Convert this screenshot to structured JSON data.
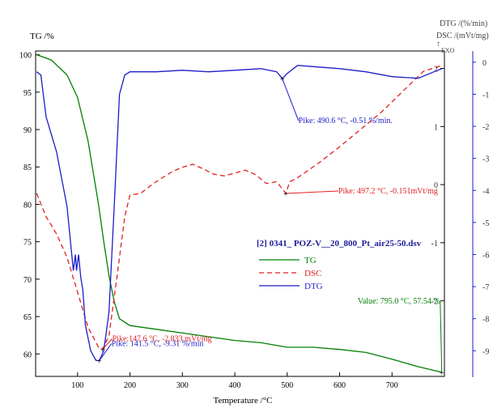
{
  "chart_data": {
    "type": "line",
    "file_title": "[2] 0341_ POZ-V__20_800_Pt_air25-50.dsv",
    "xlabel": "Temperature /°C",
    "x_ticks": [
      "100",
      "200",
      "300",
      "400",
      "500",
      "600",
      "700"
    ],
    "xlim": [
      20,
      800
    ],
    "axes": {
      "tg": {
        "label": "TG /%",
        "ylim": [
          57,
          100.5
        ],
        "ticks": [
          "100",
          "95",
          "90",
          "85",
          "80",
          "75",
          "70",
          "65",
          "60"
        ]
      },
      "dsc": {
        "label": "DSC /(mVt/mg)",
        "exo_label": "EXO",
        "exo_arrow": "↑",
        "ylim": [
          -3.3,
          2.3
        ],
        "ticks": [
          "2",
          "1",
          "0",
          "-1",
          "-2"
        ]
      },
      "dtg": {
        "label": "DTG /(%/min)",
        "ylim": [
          -9.8,
          0.35
        ],
        "ticks": [
          "0",
          "-1",
          "-2",
          "-3",
          "-4",
          "-5",
          "-6",
          "-7",
          "-8",
          "-9"
        ]
      }
    },
    "series": [
      {
        "name": "TG",
        "axis": "tg",
        "color": "#008000",
        "dash": "solid",
        "x": [
          22,
          50,
          80,
          100,
          120,
          140,
          150,
          160,
          170,
          180,
          200,
          250,
          300,
          350,
          400,
          450,
          500,
          550,
          600,
          650,
          700,
          750,
          795
        ],
        "y": [
          100,
          99.3,
          97.3,
          94.3,
          88.5,
          80,
          75,
          70.5,
          67,
          64.7,
          63.8,
          63.3,
          62.8,
          62.3,
          61.8,
          61.5,
          60.9,
          60.9,
          60.6,
          60.2,
          59.3,
          58.3,
          57.54
        ]
      },
      {
        "name": "DSC",
        "axis": "dsc",
        "color": "#e02020",
        "dash": "dashed",
        "x": [
          22,
          40,
          60,
          80,
          100,
          120,
          140,
          147.6,
          160,
          175,
          190,
          200,
          220,
          250,
          280,
          300,
          320,
          340,
          360,
          380,
          400,
          420,
          440,
          460,
          480,
          497.2,
          505,
          520,
          560,
          600,
          640,
          680,
          720,
          760,
          795
        ],
        "y": [
          -0.15,
          -0.55,
          -0.85,
          -1.25,
          -1.85,
          -2.45,
          -2.8,
          -2.833,
          -2.6,
          -1.6,
          -0.55,
          -0.18,
          -0.15,
          0.05,
          0.22,
          0.3,
          0.35,
          0.27,
          0.18,
          0.15,
          0.2,
          0.25,
          0.17,
          0.02,
          0.05,
          -0.151,
          0.05,
          0.12,
          0.37,
          0.65,
          0.95,
          1.25,
          1.6,
          1.95,
          2.05
        ]
      },
      {
        "name": "DTG",
        "axis": "dtg",
        "color": "#1c1cc8",
        "dash": "solid",
        "x": [
          22,
          30,
          40,
          60,
          80,
          92,
          96,
          98,
          102,
          106,
          110,
          115,
          125,
          135,
          141.5,
          150,
          160,
          170,
          180,
          190,
          200,
          250,
          300,
          350,
          400,
          450,
          480,
          490.6,
          500,
          520,
          560,
          600,
          650,
          700,
          750,
          780,
          795
        ],
        "y": [
          -0.3,
          -0.4,
          -1.7,
          -2.8,
          -4.5,
          -6.5,
          -6.0,
          -6.5,
          -6.0,
          -6.7,
          -7.1,
          -8.2,
          -9.0,
          -9.3,
          -9.31,
          -9.0,
          -7.8,
          -4.5,
          -1.0,
          -0.4,
          -0.3,
          -0.3,
          -0.25,
          -0.3,
          -0.25,
          -0.2,
          -0.3,
          -0.51,
          -0.35,
          -0.1,
          -0.15,
          -0.2,
          -0.3,
          -0.45,
          -0.5,
          -0.3,
          -0.2
        ]
      }
    ],
    "annotations": [
      {
        "text": "Pike: 490.6 °C, -0.51 %/min.",
        "series": "DTG",
        "x": 490.6,
        "y": -0.51
      },
      {
        "text": "Pike: 497.2 °C, -0.151mVt/mg",
        "series": "DSC",
        "x": 497.2,
        "y": -0.151
      },
      {
        "text": "Pike: 141.5 °C, -9.31 %/min",
        "series": "DTG",
        "x": 141.5,
        "y": -9.31
      },
      {
        "text": "Pike:147.6 °C, -2.833 mVt/mg",
        "series": "DSC",
        "x": 147.6,
        "y": -2.833
      },
      {
        "text": "Value: 795.0 °C, 57.54 %",
        "series": "TG",
        "x": 795,
        "y": 57.54
      }
    ],
    "legend": {
      "placement": "center-right",
      "entries": [
        "TG",
        "DSC",
        "DTG"
      ]
    },
    "grid": false
  }
}
